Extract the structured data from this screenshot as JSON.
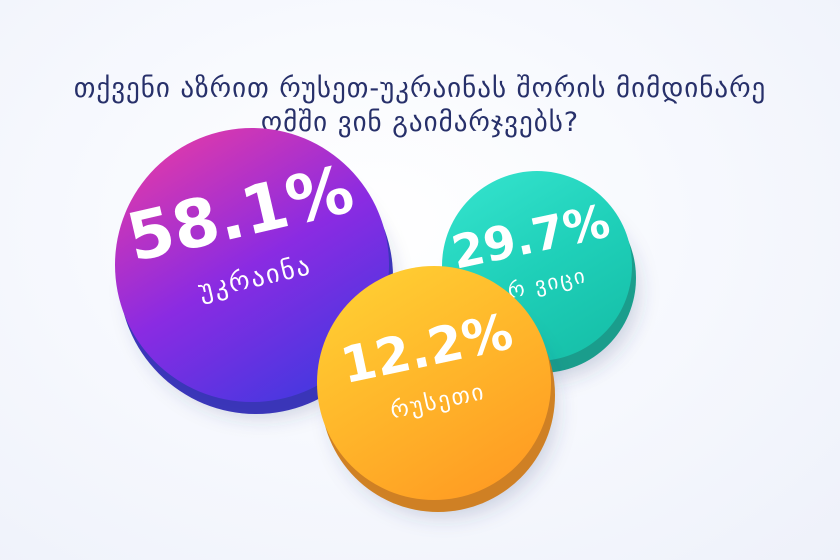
{
  "title_lines": [
    "თქვენი აზრით რუსეთ-უკრაინას შორის მიმდინარე",
    "ომში ვინ გაიმარჯვებს?"
  ],
  "chart_data": {
    "type": "bubble",
    "title": "თქვენი აზრით რუსეთ-უკრაინას შორის მიმდინარე ომში ვინ გაიმარჯვებს?",
    "categories": [
      "უკრაინა",
      "არ ვიცი",
      "რუსეთი"
    ],
    "values": [
      58.1,
      29.7,
      12.2
    ],
    "value_labels": [
      "58.1%",
      "29.7%",
      "12.2%"
    ],
    "unit": "%",
    "colors": [
      [
        "#e23aa9",
        "#8a2be2",
        "#3f39e0"
      ],
      [
        "#33e2cc",
        "#1fd0b9",
        "#16bfa8"
      ],
      [
        "#ffcf33",
        "#ffb52a",
        "#ff9a22"
      ]
    ],
    "legend": "none",
    "grid": false
  }
}
